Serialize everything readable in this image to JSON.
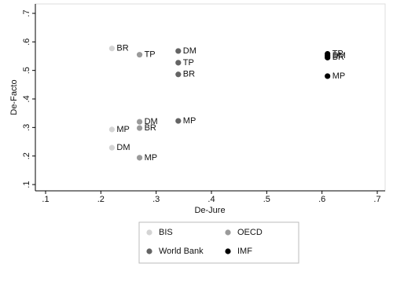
{
  "chart_data": {
    "type": "scatter",
    "x_label": "De-Jure",
    "y_label": "De-Facto",
    "xlim": [
      0.1,
      0.7
    ],
    "ylim": [
      0.1,
      0.7
    ],
    "xticks": [
      {
        "value": 0.1,
        "label": ".1"
      },
      {
        "value": 0.2,
        "label": ".2"
      },
      {
        "value": 0.3,
        "label": ".3"
      },
      {
        "value": 0.4,
        "label": ".4"
      },
      {
        "value": 0.5,
        "label": ".5"
      },
      {
        "value": 0.6,
        "label": ".6"
      },
      {
        "value": 0.7,
        "label": ".7"
      }
    ],
    "yticks": [
      {
        "value": 0.1,
        "label": ".1"
      },
      {
        "value": 0.2,
        "label": ".2"
      },
      {
        "value": 0.3,
        "label": ".3"
      },
      {
        "value": 0.4,
        "label": ".4"
      },
      {
        "value": 0.5,
        "label": ".5"
      },
      {
        "value": 0.6,
        "label": ".6"
      },
      {
        "value": 0.7,
        "label": ".7"
      }
    ],
    "series": [
      {
        "name": "BIS",
        "color": "#d4d4d4",
        "x": [
          0.22,
          0.22,
          0.22
        ],
        "values": [
          0.577,
          0.293,
          0.229
        ],
        "labels": [
          "BR",
          "MP",
          "DM"
        ]
      },
      {
        "name": "OECD",
        "color": "#9a9a9a",
        "x": [
          0.27,
          0.27,
          0.27,
          0.27
        ],
        "values": [
          0.555,
          0.32,
          0.298,
          0.194
        ],
        "labels": [
          "TP",
          "DM",
          "BR",
          "MP"
        ]
      },
      {
        "name": "World Bank",
        "color": "#646464",
        "x": [
          0.34,
          0.34,
          0.34,
          0.34
        ],
        "values": [
          0.568,
          0.527,
          0.486,
          0.323
        ],
        "labels": [
          "DM",
          "TP",
          "BR",
          "MP"
        ]
      },
      {
        "name": "IMF",
        "color": "#000000",
        "x": [
          0.61,
          0.61,
          0.61,
          0.61
        ],
        "values": [
          0.558,
          0.551,
          0.545,
          0.48
        ],
        "labels": [
          "TP",
          "DM",
          "BR",
          "MP"
        ]
      }
    ]
  }
}
